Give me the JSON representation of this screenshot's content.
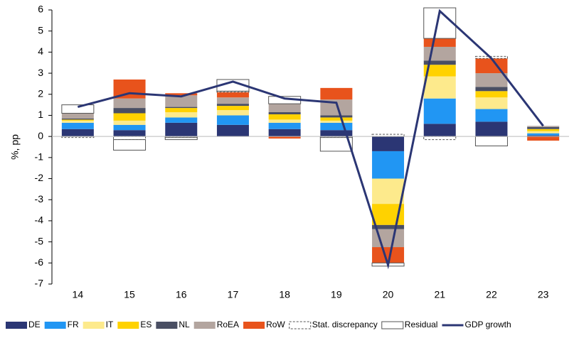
{
  "chart_data": {
    "type": "bar",
    "ylabel": "%, pp",
    "categories": [
      "14",
      "15",
      "16",
      "17",
      "18",
      "19",
      "20",
      "21",
      "22",
      "23"
    ],
    "ylim": [
      -7,
      6
    ],
    "yticks": [
      -7,
      -6,
      -5,
      -4,
      -3,
      -2,
      -1,
      0,
      1,
      2,
      3,
      4,
      5,
      6
    ],
    "series": [
      {
        "name": "DE",
        "color": "#2b3674",
        "values": [
          0.35,
          0.3,
          0.65,
          0.55,
          0.35,
          0.3,
          -0.7,
          0.6,
          0.7,
          0.05
        ]
      },
      {
        "name": "FR",
        "color": "#2196f3",
        "values": [
          0.3,
          0.25,
          0.25,
          0.45,
          0.3,
          0.35,
          -1.3,
          1.2,
          0.6,
          0.1
        ]
      },
      {
        "name": "IT",
        "color": "#fdea8c",
        "values": [
          0.1,
          0.2,
          0.25,
          0.25,
          0.15,
          0.1,
          -1.2,
          1.05,
          0.55,
          0.1
        ]
      },
      {
        "name": "ES",
        "color": "#ffd200",
        "values": [
          0.05,
          0.35,
          0.2,
          0.2,
          0.25,
          0.15,
          -1.0,
          0.55,
          0.3,
          0.1
        ]
      },
      {
        "name": "NL",
        "color": "#4a4f63",
        "values": [
          0.05,
          0.25,
          0.05,
          0.1,
          0.1,
          0.1,
          -0.2,
          0.2,
          0.2,
          0.1
        ]
      },
      {
        "name": "RoEA",
        "color": "#b3a59f",
        "values": [
          0.25,
          0.45,
          0.55,
          0.3,
          0.4,
          0.75,
          -0.85,
          0.65,
          0.65,
          0.05
        ]
      },
      {
        "name": "RoW",
        "color": "#e8531c",
        "values": [
          0,
          0.9,
          0.1,
          0.25,
          -0.1,
          0.55,
          -0.75,
          0.4,
          0.7,
          -0.2
        ]
      },
      {
        "name": "Stat. discrepancy",
        "color": "#ffffff",
        "values": [
          -0.05,
          -0.15,
          -0.05,
          0.05,
          0,
          -0.05,
          0.1,
          -0.15,
          0.1,
          0
        ]
      },
      {
        "name": "Residual",
        "color": "#ffffff",
        "values": [
          0.4,
          -0.5,
          -0.1,
          0.55,
          0.35,
          -0.65,
          -0.15,
          1.45,
          -0.45,
          0
        ]
      },
      {
        "name": "GDP growth",
        "type": "line",
        "color": "#2b3674",
        "values": [
          1.4,
          2.05,
          1.9,
          2.6,
          1.8,
          1.6,
          -6.1,
          5.95,
          3.7,
          0.5
        ]
      }
    ]
  }
}
